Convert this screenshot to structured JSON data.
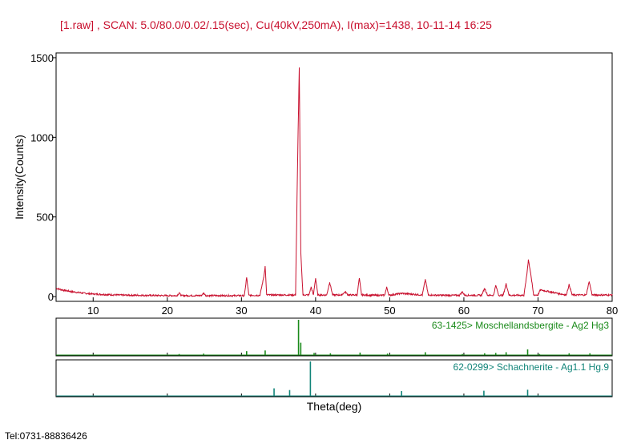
{
  "header": {
    "title": "[1.raw] , SCAN: 5.0/80.0/0.02/.15(sec), Cu(40kV,250mA), I(max)=1438, 10-11-14 16:25"
  },
  "footer": {
    "contact": "Tel:0731-88836426"
  },
  "colors": {
    "pattern": "#c8102e",
    "ref1": "#1a8a1a",
    "ref2": "#12857a"
  },
  "chart_data": {
    "type": "line",
    "title": "[1.raw] , SCAN: 5.0/80.0/0.02/.15(sec), Cu(40kV,250mA), I(max)=1438, 10-11-14 16:25",
    "xlabel": "Theta(deg)",
    "ylabel": "Intensity(Counts)",
    "xlim": [
      5,
      80
    ],
    "ylim": [
      -30,
      1530
    ],
    "x_ticks": [
      10,
      20,
      30,
      40,
      50,
      60,
      70,
      80
    ],
    "x_tick_labels": [
      "10",
      "20",
      "30",
      "40",
      "50",
      "60",
      "70",
      "80"
    ],
    "y_ticks": [
      0,
      500,
      1000,
      1500
    ],
    "y_tick_labels": [
      "0",
      "500",
      "1000",
      "1500"
    ],
    "series": [
      {
        "name": "1.raw",
        "x": [
          5.0,
          6.0,
          7.0,
          8.0,
          9.0,
          10.0,
          12.0,
          14.0,
          16.0,
          18.0,
          20.0,
          21.3,
          21.6,
          21.9,
          22.5,
          24.6,
          24.9,
          25.2,
          27.0,
          30.4,
          30.7,
          31.0,
          32.5,
          33.0,
          33.2,
          33.4,
          34.2,
          37.3,
          37.6,
          37.8,
          38.0,
          38.3,
          39.1,
          39.4,
          39.7,
          40.0,
          40.3,
          41.5,
          41.9,
          42.3,
          43.5,
          44.0,
          44.4,
          45.6,
          45.9,
          46.2,
          48.0,
          49.3,
          49.6,
          49.9,
          51.6,
          54.4,
          54.8,
          55.2,
          57.0,
          59.4,
          59.8,
          60.1,
          62.4,
          62.8,
          63.2,
          64.0,
          64.3,
          64.7,
          65.3,
          65.7,
          66.1,
          68.1,
          68.5,
          68.7,
          69.0,
          69.4,
          70.0,
          70.3,
          73.8,
          74.2,
          74.6,
          76.5,
          76.9,
          77.3,
          80.0
        ],
        "y": [
          52,
          40,
          32,
          25,
          20,
          16,
          12,
          9,
          8,
          7,
          6,
          6,
          22,
          6,
          6,
          6,
          22,
          6,
          6,
          6,
          120,
          8,
          8,
          120,
          190,
          10,
          10,
          10,
          920,
          1438,
          280,
          10,
          10,
          60,
          10,
          115,
          10,
          10,
          90,
          10,
          10,
          30,
          10,
          10,
          115,
          10,
          8,
          8,
          58,
          8,
          20,
          10,
          108,
          10,
          8,
          8,
          30,
          8,
          8,
          52,
          8,
          8,
          70,
          8,
          8,
          80,
          8,
          8,
          140,
          232,
          150,
          10,
          10,
          42,
          10,
          75,
          10,
          10,
          95,
          10,
          10
        ]
      }
    ],
    "reference_patterns": [
      {
        "name": "63-1425> Moschellandsbergite - Ag2 Hg3",
        "color": "#1a8a1a",
        "peaks": [
          [
            21.6,
            0.03
          ],
          [
            24.9,
            0.04
          ],
          [
            30.7,
            0.11
          ],
          [
            33.2,
            0.13
          ],
          [
            37.7,
            1.0
          ],
          [
            38.0,
            0.35
          ],
          [
            39.8,
            0.06
          ],
          [
            42.0,
            0.05
          ],
          [
            46.0,
            0.07
          ],
          [
            49.7,
            0.04
          ],
          [
            54.8,
            0.08
          ],
          [
            59.8,
            0.03
          ],
          [
            62.8,
            0.05
          ],
          [
            64.3,
            0.06
          ],
          [
            65.7,
            0.08
          ],
          [
            68.6,
            0.16
          ],
          [
            70.2,
            0.03
          ],
          [
            74.2,
            0.05
          ],
          [
            77.0,
            0.05
          ]
        ]
      },
      {
        "name": "62-0299> Schachnerite - Ag1.1 Hg.9",
        "color": "#12857a",
        "peaks": [
          [
            34.4,
            0.22
          ],
          [
            36.5,
            0.17
          ],
          [
            39.3,
            1.0
          ],
          [
            51.6,
            0.14
          ],
          [
            62.7,
            0.15
          ],
          [
            68.6,
            0.18
          ]
        ]
      }
    ]
  }
}
